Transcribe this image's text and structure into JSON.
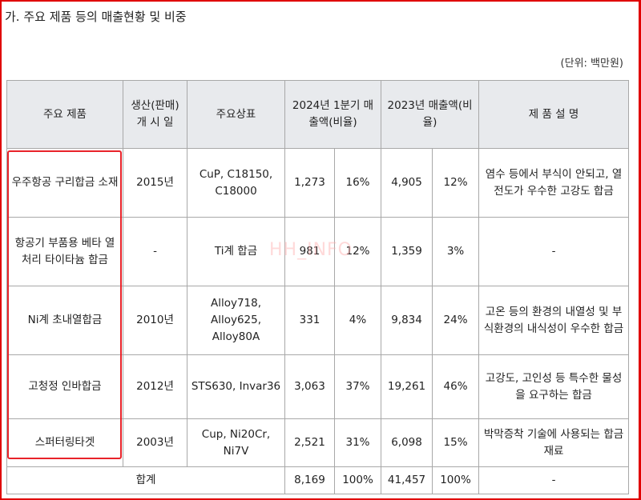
{
  "title": "가. 주요 제품 등의 매출현황 및 비중",
  "unit": "(단위: 백만원)",
  "watermark": "HH_INFO",
  "colors": {
    "highlight": "#e8232a",
    "frame": "#e00000",
    "header_bg": "#e8eaed"
  },
  "headers": {
    "product": "주요 제품",
    "launch": "생산(판매) 개 시 일",
    "brand": "주요상표",
    "sales2024": "2024년 1분기 매출액(비율)",
    "sales2023": "2023년 매출액(비율)",
    "description": "제 품 설 명"
  },
  "rows": [
    {
      "product": "우주항공 구리합금 소재",
      "launch": "2015년",
      "brand": "CuP, C18150, C18000",
      "amt2024": "1,273",
      "pct2024": "16%",
      "amt2023": "4,905",
      "pct2023": "12%",
      "description": "염수 등에서 부식이 안되고, 열전도가 우수한 고강도 합금"
    },
    {
      "product": "항공기 부품용 베타 열처리 타이타늄 합금",
      "launch": "-",
      "brand": "Ti계 합금",
      "amt2024": "981",
      "pct2024": "12%",
      "amt2023": "1,359",
      "pct2023": "3%",
      "description": "-"
    },
    {
      "product": "Ni계 초내열합금",
      "launch": "2010년",
      "brand": "Alloy718, Alloy625, Alloy80A",
      "amt2024": "331",
      "pct2024": "4%",
      "amt2023": "9,834",
      "pct2023": "24%",
      "description": "고온 등의 환경의 내열성 및 부식환경의 내식성이 우수한 합금"
    },
    {
      "product": "고청정 인바합금",
      "launch": "2012년",
      "brand": "STS630, Invar36",
      "amt2024": "3,063",
      "pct2024": "37%",
      "amt2023": "19,261",
      "pct2023": "46%",
      "description": "고강도, 고인성 등 특수한 물성을 요구하는 합금"
    },
    {
      "product": "스퍼터링타겟",
      "launch": "2003년",
      "brand": "Cup, Ni20Cr, Ni7V",
      "amt2024": "2,521",
      "pct2024": "31%",
      "amt2023": "6,098",
      "pct2023": "15%",
      "description": "박막증착 기술에 사용되는 합금재료"
    }
  ],
  "total": {
    "label": "합계",
    "amt2024": "8,169",
    "pct2024": "100%",
    "amt2023": "41,457",
    "pct2023": "100%",
    "description": "-"
  }
}
